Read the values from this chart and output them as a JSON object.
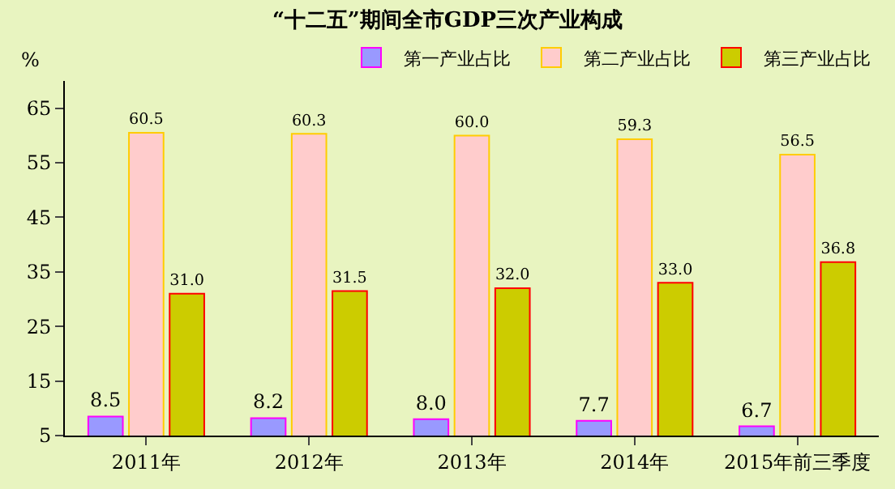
{
  "chart_data": {
    "type": "bar",
    "title": "“十二五”期间全市GDP三次产业构成",
    "ylabel": "%",
    "categories": [
      "2011年",
      "2012年",
      "2013年",
      "2014年",
      "2015年前三季度"
    ],
    "series": [
      {
        "name": "第一产业占比",
        "color": "#9999ff",
        "values": [
          8.5,
          8.2,
          8.0,
          7.7,
          6.7
        ],
        "value_labels": [
          "8.5",
          "8.2",
          "8.0",
          "7.7",
          "6.7"
        ]
      },
      {
        "name": "第二产业占比",
        "color": "#ffcccc",
        "values": [
          60.5,
          60.3,
          60.0,
          59.3,
          56.5
        ],
        "value_labels": [
          "60.5",
          "60.3",
          "60.0",
          "59.3",
          "56.5"
        ]
      },
      {
        "name": "第三产业占比",
        "color": "#cccc00",
        "values": [
          31.0,
          31.5,
          32.0,
          33.0,
          36.8
        ],
        "value_labels": [
          "31.0",
          "31.5",
          "32.0",
          "33.0",
          "36.8"
        ]
      }
    ],
    "ylim": [
      5,
      70
    ],
    "yticks": [
      5,
      15,
      25,
      35,
      45,
      55,
      65
    ],
    "grid": false,
    "legend": "top right"
  }
}
